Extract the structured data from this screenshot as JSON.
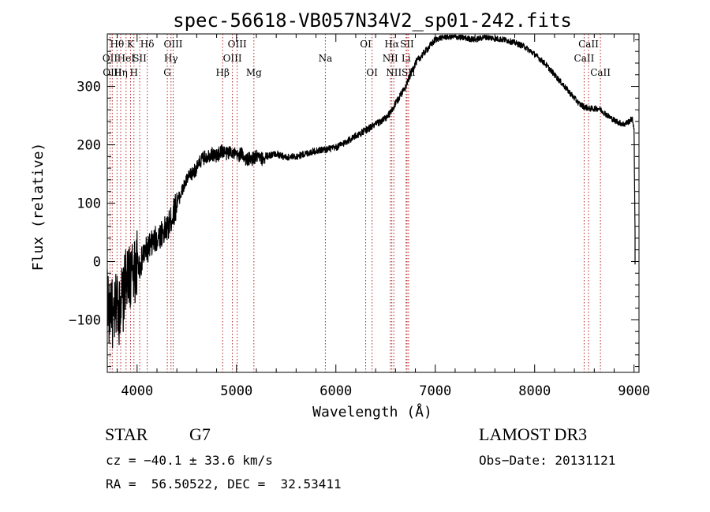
{
  "chart_data": {
    "type": "line",
    "title": "spec-56618-VB057N34V2_sp01-242.fits",
    "xlabel": "Wavelength (Å)",
    "ylabel": "Flux (relative)",
    "xlim": [
      3700,
      9050
    ],
    "ylim": [
      -190,
      390
    ],
    "xticks": [
      4000,
      5000,
      6000,
      7000,
      8000,
      9000
    ],
    "yticks": [
      -100,
      0,
      100,
      200,
      300
    ],
    "xtick_labels": [
      "4000",
      "5000",
      "6000",
      "7000",
      "8000",
      "9000"
    ],
    "ytick_labels": [
      "−100",
      "0",
      "100",
      "200",
      "300"
    ],
    "series": [
      {
        "name": "flux",
        "x": [
          3700,
          3720,
          3740,
          3760,
          3780,
          3800,
          3820,
          3840,
          3860,
          3880,
          3900,
          3920,
          3940,
          3960,
          3980,
          4000,
          4030,
          4060,
          4100,
          4150,
          4200,
          4250,
          4300,
          4350,
          4400,
          4450,
          4500,
          4550,
          4600,
          4650,
          4700,
          4750,
          4800,
          4850,
          4900,
          4950,
          5000,
          5050,
          5100,
          5150,
          5200,
          5250,
          5300,
          5400,
          5500,
          5600,
          5700,
          5800,
          5900,
          6000,
          6100,
          6200,
          6300,
          6400,
          6450,
          6500,
          6550,
          6600,
          6650,
          6700,
          6750,
          6800,
          6850,
          6900,
          6950,
          7000,
          7050,
          7100,
          7200,
          7300,
          7400,
          7500,
          7600,
          7700,
          7800,
          7900,
          8000,
          8100,
          8200,
          8300,
          8400,
          8450,
          8500,
          8550,
          8600,
          8650,
          8700,
          8750,
          8800,
          8850,
          8900,
          8950,
          8980,
          9000,
          9010
        ],
        "y": [
          -40,
          -100,
          -60,
          -120,
          -80,
          -60,
          -90,
          -50,
          -70,
          -30,
          -40,
          -20,
          -30,
          -10,
          -20,
          0,
          -10,
          10,
          20,
          30,
          40,
          50,
          55,
          75,
          100,
          120,
          140,
          150,
          160,
          175,
          180,
          185,
          180,
          190,
          185,
          190,
          180,
          185,
          175,
          175,
          180,
          175,
          180,
          185,
          178,
          180,
          185,
          190,
          192,
          195,
          205,
          215,
          225,
          235,
          240,
          245,
          255,
          270,
          285,
          300,
          320,
          340,
          350,
          360,
          370,
          380,
          383,
          385,
          385,
          383,
          380,
          385,
          382,
          380,
          375,
          368,
          355,
          340,
          320,
          300,
          280,
          270,
          265,
          262,
          262,
          262,
          255,
          248,
          242,
          238,
          235,
          240,
          245,
          230,
          50
        ]
      }
    ],
    "lines": [
      {
        "wavelength": 3727,
        "label": "OII",
        "row": 2
      },
      {
        "wavelength": 3750,
        "label": "OIII",
        "row": 3
      },
      {
        "wavelength": 3798,
        "label": "Hθ",
        "row": 1
      },
      {
        "wavelength": 3835,
        "label": "Hη",
        "row": 3
      },
      {
        "wavelength": 3889,
        "label": "HeI",
        "row": 2
      },
      {
        "wavelength": 3934,
        "label": "K",
        "row": 1
      },
      {
        "wavelength": 3968,
        "label": "H",
        "row": 3
      },
      {
        "wavelength": 4026,
        "label": "SII",
        "row": 2
      },
      {
        "wavelength": 4102,
        "label": "Hδ",
        "row": 1
      },
      {
        "wavelength": 4304,
        "label": "G",
        "row": 3
      },
      {
        "wavelength": 4341,
        "label": "Hγ",
        "row": 2
      },
      {
        "wavelength": 4363,
        "label": "OIII",
        "row": 1
      },
      {
        "wavelength": 4861,
        "label": "Hβ",
        "row": 3
      },
      {
        "wavelength": 4959,
        "label": "OIII",
        "row": 2
      },
      {
        "wavelength": 5007,
        "label": "OIII",
        "row": 1
      },
      {
        "wavelength": 5175,
        "label": "Mg",
        "row": 3
      },
      {
        "wavelength": 5894,
        "label": "Na",
        "row": 2
      },
      {
        "wavelength": 6300,
        "label": "OI",
        "row": 1
      },
      {
        "wavelength": 6364,
        "label": "OI",
        "row": 3
      },
      {
        "wavelength": 6548,
        "label": "NII",
        "row": 2
      },
      {
        "wavelength": 6563,
        "label": "Hα",
        "row": 1
      },
      {
        "wavelength": 6583,
        "label": "NII",
        "row": 3
      },
      {
        "wavelength": 6707,
        "label": "Li",
        "row": 2
      },
      {
        "wavelength": 6716,
        "label": "SII",
        "row": 1
      },
      {
        "wavelength": 6731,
        "label": "SII",
        "row": 3
      },
      {
        "wavelength": 8498,
        "label": "CaII",
        "row": 2
      },
      {
        "wavelength": 8542,
        "label": "CaII",
        "row": 1
      },
      {
        "wavelength": 8662,
        "label": "CaII",
        "row": 3
      }
    ]
  },
  "info": {
    "class_label": "STAR",
    "subclass": "G7",
    "survey": "LAMOST DR3",
    "redshift_line": "cz = −40.1 ± 33.6 km/s",
    "obs_date": "Obs−Date: 20131121",
    "coords": "RA =  56.50522, DEC =  32.53411"
  },
  "colors": {
    "spectrum": "#000000",
    "line_markers": "#b22222",
    "axis": "#000000"
  }
}
